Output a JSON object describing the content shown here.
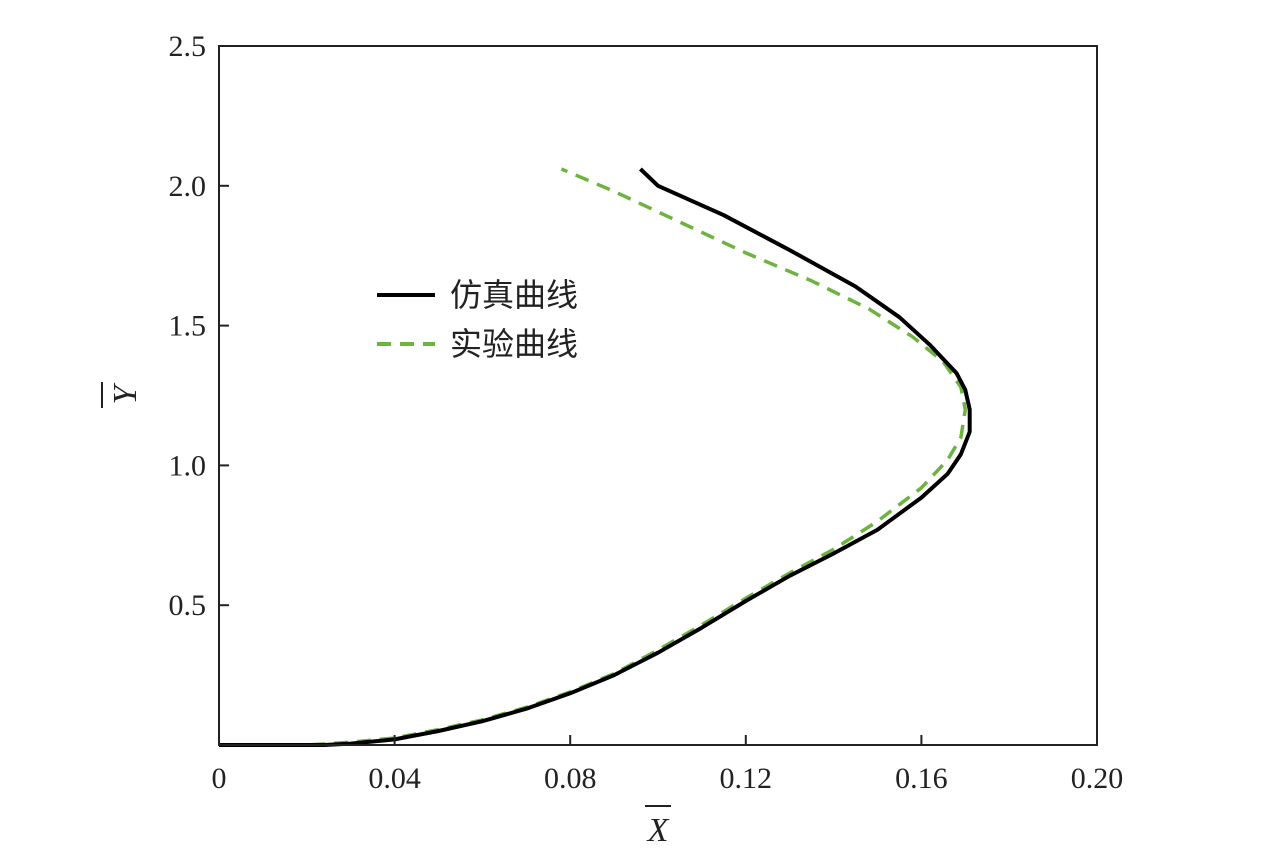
{
  "chart_data": {
    "type": "line",
    "xlabel": "X",
    "ylabel": "Y",
    "xlim": [
      0,
      0.2
    ],
    "ylim": [
      0,
      2.5
    ],
    "x_ticks": [
      {
        "value": 0,
        "label": "0"
      },
      {
        "value": 0.04,
        "label": "0.04"
      },
      {
        "value": 0.08,
        "label": "0.08"
      },
      {
        "value": 0.12,
        "label": "0.12"
      },
      {
        "value": 0.16,
        "label": "0.16"
      },
      {
        "value": 0.2,
        "label": "0.20"
      }
    ],
    "y_ticks": [
      {
        "value": 0.5,
        "label": "0.5"
      },
      {
        "value": 1.0,
        "label": "1.0"
      },
      {
        "value": 1.5,
        "label": "1.5"
      },
      {
        "value": 2.0,
        "label": "2.0"
      },
      {
        "value": 2.5,
        "label": "2.5"
      }
    ],
    "grid": false,
    "legend_position": "upper-left-inside",
    "series": [
      {
        "name": "仿真曲线",
        "color": "#000000",
        "style": "solid",
        "points": [
          [
            0.0,
            0.0
          ],
          [
            0.024,
            0.0
          ],
          [
            0.03,
            0.005
          ],
          [
            0.04,
            0.02
          ],
          [
            0.05,
            0.05
          ],
          [
            0.06,
            0.085
          ],
          [
            0.07,
            0.13
          ],
          [
            0.08,
            0.185
          ],
          [
            0.09,
            0.25
          ],
          [
            0.1,
            0.33
          ],
          [
            0.11,
            0.42
          ],
          [
            0.12,
            0.515
          ],
          [
            0.13,
            0.605
          ],
          [
            0.14,
            0.685
          ],
          [
            0.15,
            0.77
          ],
          [
            0.16,
            0.885
          ],
          [
            0.166,
            0.97
          ],
          [
            0.169,
            1.04
          ],
          [
            0.171,
            1.12
          ],
          [
            0.171,
            1.2
          ],
          [
            0.17,
            1.27
          ],
          [
            0.168,
            1.33
          ],
          [
            0.162,
            1.43
          ],
          [
            0.155,
            1.53
          ],
          [
            0.145,
            1.64
          ],
          [
            0.13,
            1.77
          ],
          [
            0.115,
            1.895
          ],
          [
            0.1,
            2.0
          ],
          [
            0.096,
            2.06
          ]
        ]
      },
      {
        "name": "实验曲线",
        "color": "#6db33f",
        "style": "dashed",
        "points": [
          [
            0.0,
            0.0
          ],
          [
            0.02,
            0.0
          ],
          [
            0.03,
            0.01
          ],
          [
            0.04,
            0.025
          ],
          [
            0.05,
            0.055
          ],
          [
            0.06,
            0.09
          ],
          [
            0.07,
            0.135
          ],
          [
            0.08,
            0.19
          ],
          [
            0.09,
            0.255
          ],
          [
            0.1,
            0.34
          ],
          [
            0.11,
            0.43
          ],
          [
            0.12,
            0.525
          ],
          [
            0.13,
            0.615
          ],
          [
            0.14,
            0.7
          ],
          [
            0.15,
            0.8
          ],
          [
            0.16,
            0.92
          ],
          [
            0.166,
            1.02
          ],
          [
            0.169,
            1.1
          ],
          [
            0.17,
            1.2
          ],
          [
            0.169,
            1.28
          ],
          [
            0.165,
            1.37
          ],
          [
            0.158,
            1.46
          ],
          [
            0.148,
            1.56
          ],
          [
            0.135,
            1.66
          ],
          [
            0.12,
            1.76
          ],
          [
            0.105,
            1.87
          ],
          [
            0.09,
            1.98
          ],
          [
            0.078,
            2.06
          ]
        ]
      }
    ]
  }
}
